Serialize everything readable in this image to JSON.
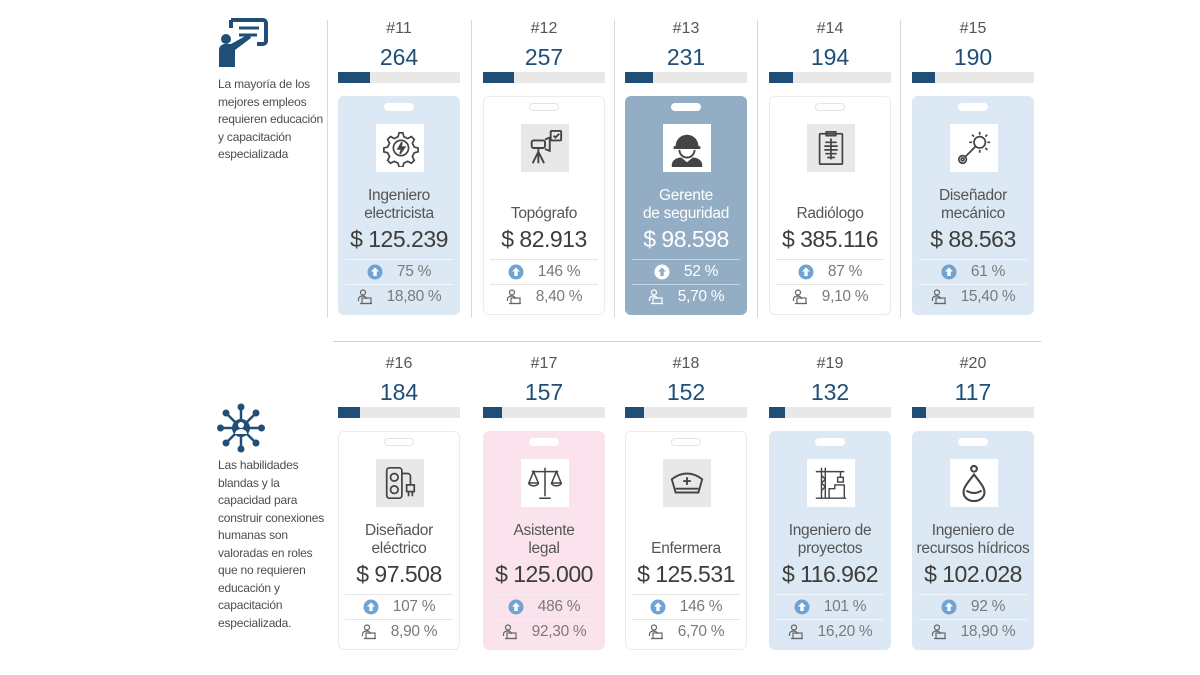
{
  "side_notes": [
    {
      "icon": "teacher-presentation-icon",
      "text": "La mayoría de los mejores empleos requieren educación y capacitación especializada"
    },
    {
      "icon": "people-network-icon",
      "text": "Las habilidades blandas y la capacidad para construir conexiones humanas son valoradas en roles que no requieren educación y capacitación especializada."
    }
  ],
  "legend_icons": {
    "growth": "arrow-up-circle-icon",
    "share": "person-laptop-icon"
  },
  "colors": {
    "bar_fill": "#1f4e79",
    "bar_track": "#e8e8e8",
    "blue_card": "#dce8f3",
    "dark_card": "#93adc4",
    "pink_card": "#fbe3ee",
    "count_text": "#1f4e79"
  },
  "bar_max": 1000,
  "jobs": [
    {
      "rank": "#11",
      "count": 264,
      "count_label": "264",
      "title": [
        "Ingeniero",
        "electricista"
      ],
      "salary": "$ 125.239",
      "growth": "75 %",
      "share": "18,80 %",
      "style": "blue",
      "icon": "gear-lightning-icon"
    },
    {
      "rank": "#12",
      "count": 257,
      "count_label": "257",
      "title": [
        "",
        "Topógrafo"
      ],
      "salary": "$ 82.913",
      "growth": "146 %",
      "share": "8,40 %",
      "style": "white",
      "icon": "survey-tripod-icon"
    },
    {
      "rank": "#13",
      "count": 231,
      "count_label": "231",
      "title": [
        "Gerente",
        "de seguridad"
      ],
      "salary": "$ 98.598",
      "growth": "52 %",
      "share": "5,70 %",
      "style": "dark",
      "icon": "hardhat-worker-icon"
    },
    {
      "rank": "#14",
      "count": 194,
      "count_label": "194",
      "title": [
        "",
        "Radiólogo"
      ],
      "salary": "$ 385.116",
      "growth": "87 %",
      "share": "9,10 %",
      "style": "white",
      "icon": "xray-clipboard-icon"
    },
    {
      "rank": "#15",
      "count": 190,
      "count_label": "190",
      "title": [
        "Diseñador",
        "mecánico"
      ],
      "salary": "$ 88.563",
      "growth": "61 %",
      "share": "15,40 %",
      "style": "blue",
      "icon": "gear-wrench-icon"
    },
    {
      "rank": "#16",
      "count": 184,
      "count_label": "184",
      "title": [
        "Diseñador",
        "eléctrico"
      ],
      "salary": "$ 97.508",
      "growth": "107 %",
      "share": "8,90 %",
      "style": "white",
      "icon": "power-strip-plug-icon"
    },
    {
      "rank": "#17",
      "count": 157,
      "count_label": "157",
      "title": [
        "Asistente",
        "legal"
      ],
      "salary": "$ 125.000",
      "growth": "486 %",
      "share": "92,30 %",
      "style": "pink",
      "icon": "scales-of-justice-icon"
    },
    {
      "rank": "#18",
      "count": 152,
      "count_label": "152",
      "title": [
        "",
        "Enfermera"
      ],
      "salary": "$ 125.531",
      "growth": "146 %",
      "share": "6,70 %",
      "style": "white",
      "icon": "nurse-cap-icon"
    },
    {
      "rank": "#19",
      "count": 132,
      "count_label": "132",
      "title": [
        "Ingeniero de",
        "proyectos"
      ],
      "salary": "$ 116.962",
      "growth": "101 %",
      "share": "16,20 %",
      "style": "blue",
      "icon": "construction-crane-icon"
    },
    {
      "rank": "#20",
      "count": 117,
      "count_label": "117",
      "title": [
        "Ingeniero de",
        "recursos hídricos"
      ],
      "salary": "$ 102.028",
      "growth": "92 %",
      "share": "18,90 %",
      "style": "blue",
      "icon": "water-drop-icon"
    }
  ]
}
